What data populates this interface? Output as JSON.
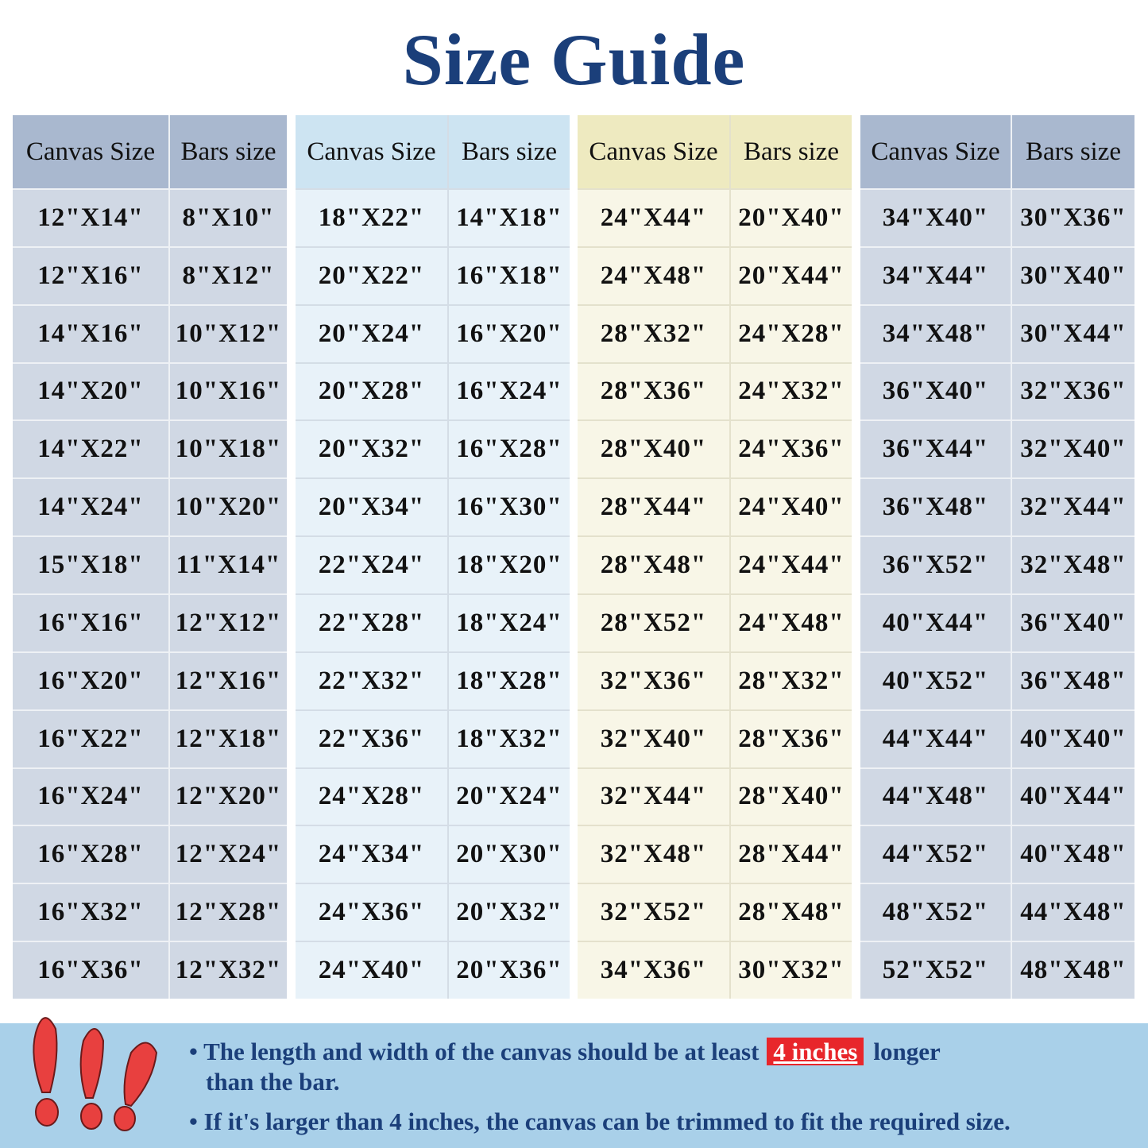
{
  "title": "Size Guide",
  "headers": {
    "canvas": "Canvas Size",
    "bars": "Bars size"
  },
  "groups": [
    {
      "rows": [
        [
          "12\"X14\"",
          "8\"X10\""
        ],
        [
          "12\"X16\"",
          "8\"X12\""
        ],
        [
          "14\"X16\"",
          "10\"X12\""
        ],
        [
          "14\"X20\"",
          "10\"X16\""
        ],
        [
          "14\"X22\"",
          "10\"X18\""
        ],
        [
          "14\"X24\"",
          "10\"X20\""
        ],
        [
          "15\"X18\"",
          "11\"X14\""
        ],
        [
          "16\"X16\"",
          "12\"X12\""
        ],
        [
          "16\"X20\"",
          "12\"X16\""
        ],
        [
          "16\"X22\"",
          "12\"X18\""
        ],
        [
          "16\"X24\"",
          "12\"X20\""
        ],
        [
          "16\"X28\"",
          "12\"X24\""
        ],
        [
          "16\"X32\"",
          "12\"X28\""
        ],
        [
          "16\"X36\"",
          "12\"X32\""
        ]
      ]
    },
    {
      "rows": [
        [
          "18\"X22\"",
          "14\"X18\""
        ],
        [
          "20\"X22\"",
          "16\"X18\""
        ],
        [
          "20\"X24\"",
          "16\"X20\""
        ],
        [
          "20\"X28\"",
          "16\"X24\""
        ],
        [
          "20\"X32\"",
          "16\"X28\""
        ],
        [
          "20\"X34\"",
          "16\"X30\""
        ],
        [
          "22\"X24\"",
          "18\"X20\""
        ],
        [
          "22\"X28\"",
          "18\"X24\""
        ],
        [
          "22\"X32\"",
          "18\"X28\""
        ],
        [
          "22\"X36\"",
          "18\"X32\""
        ],
        [
          "24\"X28\"",
          "20\"X24\""
        ],
        [
          "24\"X34\"",
          "20\"X30\""
        ],
        [
          "24\"X36\"",
          "20\"X32\""
        ],
        [
          "24\"X40\"",
          "20\"X36\""
        ]
      ]
    },
    {
      "rows": [
        [
          "24\"X44\"",
          "20\"X40\""
        ],
        [
          "24\"X48\"",
          "20\"X44\""
        ],
        [
          "28\"X32\"",
          "24\"X28\""
        ],
        [
          "28\"X36\"",
          "24\"X32\""
        ],
        [
          "28\"X40\"",
          "24\"X36\""
        ],
        [
          "28\"X44\"",
          "24\"X40\""
        ],
        [
          "28\"X48\"",
          "24\"X44\""
        ],
        [
          "28\"X52\"",
          "24\"X48\""
        ],
        [
          "32\"X36\"",
          "28\"X32\""
        ],
        [
          "32\"X40\"",
          "28\"X36\""
        ],
        [
          "32\"X44\"",
          "28\"X40\""
        ],
        [
          "32\"X48\"",
          "28\"X44\""
        ],
        [
          "32\"X52\"",
          "28\"X48\""
        ],
        [
          "34\"X36\"",
          "30\"X32\""
        ]
      ]
    },
    {
      "rows": [
        [
          "34\"X40\"",
          "30\"X36\""
        ],
        [
          "34\"X44\"",
          "30\"X40\""
        ],
        [
          "34\"X48\"",
          "30\"X44\""
        ],
        [
          "36\"X40\"",
          "32\"X36\""
        ],
        [
          "36\"X44\"",
          "32\"X40\""
        ],
        [
          "36\"X48\"",
          "32\"X44\""
        ],
        [
          "36\"X52\"",
          "32\"X48\""
        ],
        [
          "40\"X44\"",
          "36\"X40\""
        ],
        [
          "40\"X52\"",
          "36\"X48\""
        ],
        [
          "44\"X44\"",
          "40\"X40\""
        ],
        [
          "44\"X48\"",
          "40\"X44\""
        ],
        [
          "44\"X52\"",
          "40\"X48\""
        ],
        [
          "48\"X52\"",
          "44\"X48\""
        ],
        [
          "52\"X52\"",
          "48\"X48\""
        ]
      ]
    }
  ],
  "notes": {
    "bullet": "•",
    "line1_before": "The length and width of the canvas should be at least",
    "line1_highlight": "4 inches",
    "line1_after": "longer",
    "line1_cont": "than the bar.",
    "line2": "If it's larger than 4 inches, the canvas can be trimmed to fit the required size."
  },
  "colors": {
    "title": "#1b3f7a",
    "highlight": "#e8262b",
    "note_bg": "#a9d0e9",
    "exclamation": "#e8403f"
  },
  "icons": [
    "exclamation-marks-icon"
  ]
}
